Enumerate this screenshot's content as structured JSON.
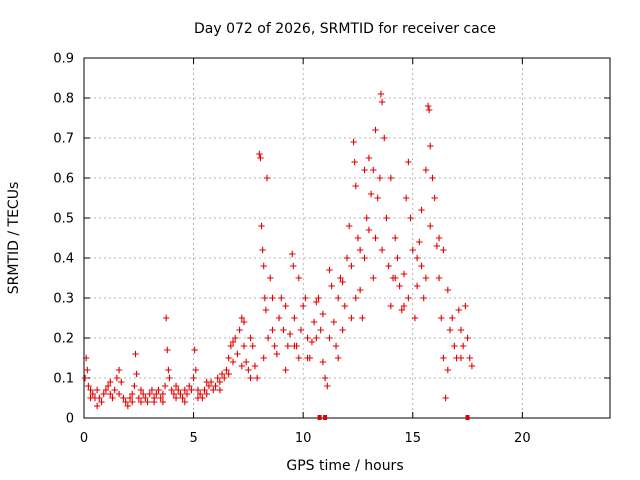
{
  "chart_data": {
    "type": "scatter",
    "title": "Day 072 of 2026, SRMTID for receiver cace",
    "xlabel": "GPS time / hours",
    "ylabel": "SRMTID / TECUs",
    "xlim": [
      0,
      24
    ],
    "ylim": [
      0,
      0.9
    ],
    "x_ticks": [
      0,
      5,
      10,
      15,
      20
    ],
    "x_tick_labels": [
      "0",
      "5",
      "10",
      "15",
      "20"
    ],
    "y_ticks": [
      0,
      0.1,
      0.2,
      0.3,
      0.4,
      0.5,
      0.6,
      0.7,
      0.8,
      0.9
    ],
    "y_tick_labels": [
      "0",
      "0.1",
      "0.2",
      "0.3",
      "0.4",
      "0.5",
      "0.6",
      "0.7",
      "0.8",
      "0.9"
    ],
    "grid": true,
    "marker": "plus",
    "color": "#e00000",
    "series": [
      {
        "name": "SRMTID",
        "points": [
          [
            0.05,
            0.1
          ],
          [
            0.1,
            0.15
          ],
          [
            0.15,
            0.12
          ],
          [
            0.2,
            0.08
          ],
          [
            0.3,
            0.07
          ],
          [
            0.4,
            0.06
          ],
          [
            0.5,
            0.05
          ],
          [
            0.6,
            0.07
          ],
          [
            0.7,
            0.05
          ],
          [
            0.8,
            0.04
          ],
          [
            0.9,
            0.06
          ],
          [
            1.0,
            0.07
          ],
          [
            1.1,
            0.08
          ],
          [
            1.2,
            0.06
          ],
          [
            1.3,
            0.05
          ],
          [
            1.4,
            0.07
          ],
          [
            1.5,
            0.1
          ],
          [
            1.6,
            0.12
          ],
          [
            1.7,
            0.09
          ],
          [
            1.8,
            0.05
          ],
          [
            1.9,
            0.04
          ],
          [
            2.0,
            0.03
          ],
          [
            2.1,
            0.05
          ],
          [
            2.2,
            0.04
          ],
          [
            2.3,
            0.08
          ],
          [
            2.35,
            0.16
          ],
          [
            2.4,
            0.11
          ],
          [
            2.5,
            0.05
          ],
          [
            2.6,
            0.04
          ],
          [
            2.7,
            0.06
          ],
          [
            2.8,
            0.05
          ],
          [
            2.9,
            0.04
          ],
          [
            3.0,
            0.06
          ],
          [
            3.1,
            0.07
          ],
          [
            3.2,
            0.05
          ],
          [
            3.3,
            0.06
          ],
          [
            3.4,
            0.07
          ],
          [
            3.5,
            0.05
          ],
          [
            3.6,
            0.06
          ],
          [
            3.7,
            0.08
          ],
          [
            3.75,
            0.25
          ],
          [
            3.8,
            0.17
          ],
          [
            3.85,
            0.12
          ],
          [
            3.9,
            0.1
          ],
          [
            4.0,
            0.07
          ],
          [
            4.1,
            0.06
          ],
          [
            4.2,
            0.05
          ],
          [
            4.3,
            0.07
          ],
          [
            4.4,
            0.06
          ],
          [
            4.5,
            0.05
          ],
          [
            4.6,
            0.04
          ],
          [
            4.7,
            0.06
          ],
          [
            4.8,
            0.08
          ],
          [
            4.9,
            0.07
          ],
          [
            5.0,
            0.1
          ],
          [
            5.05,
            0.17
          ],
          [
            5.1,
            0.12
          ],
          [
            5.2,
            0.07
          ],
          [
            5.3,
            0.06
          ],
          [
            5.4,
            0.05
          ],
          [
            5.5,
            0.07
          ],
          [
            5.6,
            0.06
          ],
          [
            5.7,
            0.08
          ],
          [
            5.8,
            0.09
          ],
          [
            5.9,
            0.07
          ],
          [
            6.0,
            0.08
          ],
          [
            6.1,
            0.1
          ],
          [
            6.2,
            0.09
          ],
          [
            6.3,
            0.11
          ],
          [
            6.4,
            0.1
          ],
          [
            6.5,
            0.12
          ],
          [
            6.6,
            0.11
          ],
          [
            6.7,
            0.18
          ],
          [
            6.8,
            0.14
          ],
          [
            6.9,
            0.2
          ],
          [
            7.0,
            0.16
          ],
          [
            7.1,
            0.22
          ],
          [
            7.2,
            0.25
          ],
          [
            7.3,
            0.18
          ],
          [
            7.4,
            0.14
          ],
          [
            7.5,
            0.12
          ],
          [
            7.6,
            0.2
          ],
          [
            7.7,
            0.18
          ],
          [
            7.8,
            0.13
          ],
          [
            7.9,
            0.1
          ],
          [
            8.0,
            0.66
          ],
          [
            8.05,
            0.65
          ],
          [
            8.1,
            0.48
          ],
          [
            8.15,
            0.42
          ],
          [
            8.2,
            0.38
          ],
          [
            8.25,
            0.3
          ],
          [
            8.3,
            0.27
          ],
          [
            8.4,
            0.2
          ],
          [
            8.5,
            0.35
          ],
          [
            8.6,
            0.22
          ],
          [
            8.7,
            0.18
          ],
          [
            8.8,
            0.16
          ],
          [
            8.9,
            0.25
          ],
          [
            9.0,
            0.3
          ],
          [
            9.1,
            0.22
          ],
          [
            9.2,
            0.28
          ],
          [
            9.3,
            0.18
          ],
          [
            9.4,
            0.21
          ],
          [
            9.5,
            0.41
          ],
          [
            9.55,
            0.38
          ],
          [
            9.6,
            0.25
          ],
          [
            9.7,
            0.18
          ],
          [
            9.8,
            0.15
          ],
          [
            9.9,
            0.22
          ],
          [
            10.0,
            0.28
          ],
          [
            10.1,
            0.3
          ],
          [
            10.2,
            0.2
          ],
          [
            10.3,
            0.15
          ],
          [
            10.4,
            0.19
          ],
          [
            10.5,
            0.24
          ],
          [
            10.6,
            0.29
          ],
          [
            10.7,
            0.3
          ],
          [
            10.8,
            0.22
          ],
          [
            10.9,
            0.14
          ],
          [
            11.0,
            0.1
          ],
          [
            11.1,
            0.08
          ],
          [
            11.2,
            0.37
          ],
          [
            11.3,
            0.33
          ],
          [
            11.4,
            0.24
          ],
          [
            11.5,
            0.18
          ],
          [
            11.6,
            0.3
          ],
          [
            11.7,
            0.35
          ],
          [
            11.8,
            0.22
          ],
          [
            11.9,
            0.28
          ],
          [
            12.0,
            0.4
          ],
          [
            12.1,
            0.48
          ],
          [
            12.2,
            0.38
          ],
          [
            12.3,
            0.69
          ],
          [
            12.35,
            0.64
          ],
          [
            12.4,
            0.58
          ],
          [
            12.5,
            0.45
          ],
          [
            12.6,
            0.32
          ],
          [
            12.7,
            0.25
          ],
          [
            12.8,
            0.4
          ],
          [
            12.9,
            0.5
          ],
          [
            13.0,
            0.47
          ],
          [
            13.1,
            0.56
          ],
          [
            13.2,
            0.62
          ],
          [
            13.3,
            0.72
          ],
          [
            13.4,
            0.55
          ],
          [
            13.5,
            0.6
          ],
          [
            13.55,
            0.81
          ],
          [
            13.6,
            0.79
          ],
          [
            13.7,
            0.7
          ],
          [
            13.8,
            0.5
          ],
          [
            13.9,
            0.38
          ],
          [
            14.0,
            0.28
          ],
          [
            14.1,
            0.35
          ],
          [
            14.2,
            0.45
          ],
          [
            14.3,
            0.4
          ],
          [
            14.4,
            0.33
          ],
          [
            14.5,
            0.27
          ],
          [
            14.6,
            0.36
          ],
          [
            14.7,
            0.55
          ],
          [
            14.8,
            0.64
          ],
          [
            14.9,
            0.5
          ],
          [
            15.0,
            0.42
          ],
          [
            15.1,
            0.25
          ],
          [
            15.2,
            0.33
          ],
          [
            15.3,
            0.44
          ],
          [
            15.4,
            0.38
          ],
          [
            15.5,
            0.3
          ],
          [
            15.6,
            0.62
          ],
          [
            15.7,
            0.78
          ],
          [
            15.75,
            0.77
          ],
          [
            15.8,
            0.68
          ],
          [
            15.9,
            0.6
          ],
          [
            16.0,
            0.55
          ],
          [
            16.1,
            0.43
          ],
          [
            16.2,
            0.35
          ],
          [
            16.3,
            0.25
          ],
          [
            16.4,
            0.15
          ],
          [
            16.5,
            0.05
          ],
          [
            16.6,
            0.12
          ],
          [
            16.7,
            0.22
          ],
          [
            16.8,
            0.25
          ],
          [
            16.9,
            0.18
          ],
          [
            17.0,
            0.15
          ],
          [
            17.1,
            0.27
          ],
          [
            17.2,
            0.22
          ],
          [
            17.3,
            0.18
          ],
          [
            17.4,
            0.28
          ],
          [
            17.5,
            0.2
          ],
          [
            17.6,
            0.15
          ],
          [
            17.7,
            0.13
          ],
          [
            0.3,
            0.05
          ],
          [
            0.6,
            0.03
          ],
          [
            1.2,
            0.09
          ],
          [
            1.6,
            0.06
          ],
          [
            2.2,
            0.06
          ],
          [
            2.6,
            0.07
          ],
          [
            3.2,
            0.04
          ],
          [
            3.6,
            0.04
          ],
          [
            4.2,
            0.08
          ],
          [
            4.6,
            0.07
          ],
          [
            5.2,
            0.05
          ],
          [
            5.6,
            0.09
          ],
          [
            6.2,
            0.07
          ],
          [
            6.6,
            0.15
          ],
          [
            7.2,
            0.13
          ],
          [
            7.6,
            0.1
          ],
          [
            8.2,
            0.15
          ],
          [
            8.6,
            0.3
          ],
          [
            9.2,
            0.12
          ],
          [
            9.6,
            0.18
          ],
          [
            10.2,
            0.15
          ],
          [
            10.6,
            0.2
          ],
          [
            11.2,
            0.2
          ],
          [
            11.6,
            0.15
          ],
          [
            12.2,
            0.25
          ],
          [
            12.6,
            0.42
          ],
          [
            13.2,
            0.35
          ],
          [
            13.6,
            0.42
          ],
          [
            14.2,
            0.35
          ],
          [
            14.6,
            0.28
          ],
          [
            15.2,
            0.4
          ],
          [
            15.6,
            0.35
          ],
          [
            16.2,
            0.45
          ],
          [
            16.6,
            0.32
          ],
          [
            17.2,
            0.15
          ],
          [
            8.35,
            0.6
          ],
          [
            12.8,
            0.62
          ],
          [
            13.0,
            0.65
          ],
          [
            14.0,
            0.6
          ],
          [
            15.4,
            0.52
          ],
          [
            16.4,
            0.42
          ],
          [
            11.8,
            0.34
          ],
          [
            12.4,
            0.3
          ],
          [
            10.9,
            0.26
          ],
          [
            9.8,
            0.35
          ],
          [
            7.3,
            0.24
          ],
          [
            6.8,
            0.19
          ],
          [
            14.8,
            0.3
          ],
          [
            15.8,
            0.48
          ],
          [
            13.3,
            0.45
          ]
        ]
      }
    ],
    "zero_markers": [
      10.75,
      11.0,
      17.5
    ]
  }
}
